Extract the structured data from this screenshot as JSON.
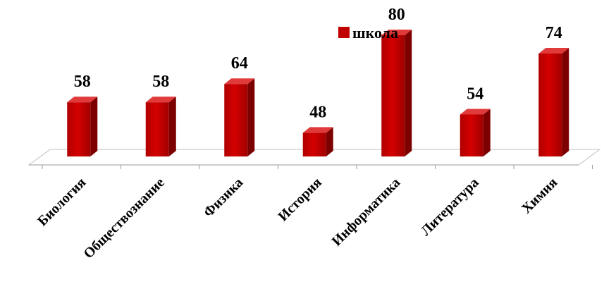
{
  "chart_data": {
    "type": "bar",
    "style": "3d-column",
    "categories": [
      "Биология",
      "Обществознание",
      "Физика",
      "История",
      "Информатика",
      "Литература",
      "Химия"
    ],
    "series": [
      {
        "name": "школа",
        "values": [
          58,
          58,
          64,
          48,
          80,
          54,
          74
        ],
        "color": "#c00000"
      }
    ],
    "title": "",
    "xlabel": "",
    "ylabel": "",
    "ylim": [
      40,
      80
    ],
    "legend_position": "top-right",
    "data_labels": true,
    "grid": false
  }
}
